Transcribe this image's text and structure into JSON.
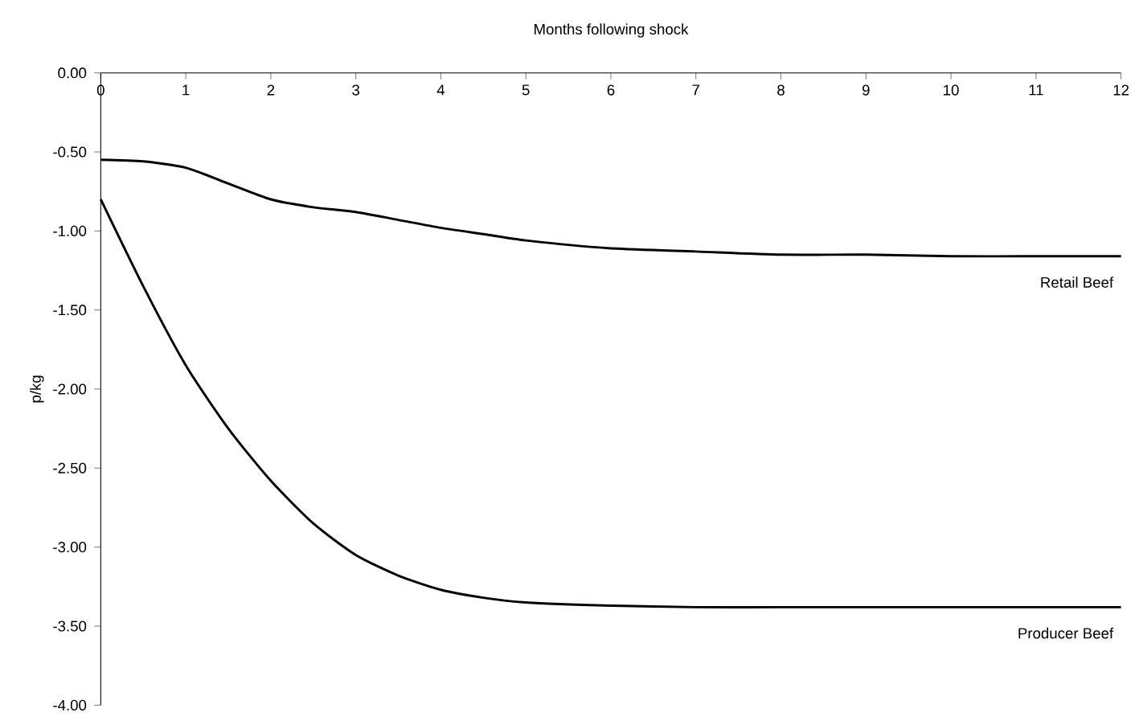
{
  "chart_data": {
    "type": "line",
    "xlabel": "Months following shock",
    "ylabel": "p/kg",
    "xlim": [
      0,
      12
    ],
    "xticks": [
      0,
      1,
      2,
      3,
      4,
      5,
      6,
      7,
      8,
      9,
      10,
      11,
      12
    ],
    "ylim": [
      -4,
      0
    ],
    "yticks": [
      {
        "value": 0,
        "label": "0.00"
      },
      {
        "value": -0.5,
        "label": "-0.50"
      },
      {
        "value": -1,
        "label": "-1.00"
      },
      {
        "value": -1.5,
        "label": "-1.50"
      },
      {
        "value": -2,
        "label": "-2.00"
      },
      {
        "value": -2.5,
        "label": "-2.50"
      },
      {
        "value": -3,
        "label": "-3.00"
      },
      {
        "value": -3.5,
        "label": "-3.50"
      },
      {
        "value": -4,
        "label": "-4.00"
      }
    ],
    "x": [
      0,
      0.5,
      1,
      1.5,
      2,
      2.5,
      3,
      3.5,
      4,
      4.5,
      5,
      6,
      7,
      8,
      9,
      10,
      11,
      12
    ],
    "series": [
      {
        "name": "Retail Beef",
        "color": "#000000",
        "values": [
          -0.55,
          -0.56,
          -0.6,
          -0.7,
          -0.8,
          -0.85,
          -0.88,
          -0.93,
          -0.98,
          -1.02,
          -1.06,
          -1.11,
          -1.13,
          -1.15,
          -1.15,
          -1.16,
          -1.16,
          -1.16
        ]
      },
      {
        "name": "Producer Beef",
        "color": "#000000",
        "values": [
          -0.8,
          -1.35,
          -1.85,
          -2.25,
          -2.58,
          -2.85,
          -3.05,
          -3.18,
          -3.27,
          -3.32,
          -3.35,
          -3.37,
          -3.38,
          -3.38,
          -3.38,
          -3.38,
          -3.38,
          -3.38
        ]
      }
    ],
    "grid": false,
    "legend": false,
    "marker": "none",
    "line_style": "solid"
  }
}
